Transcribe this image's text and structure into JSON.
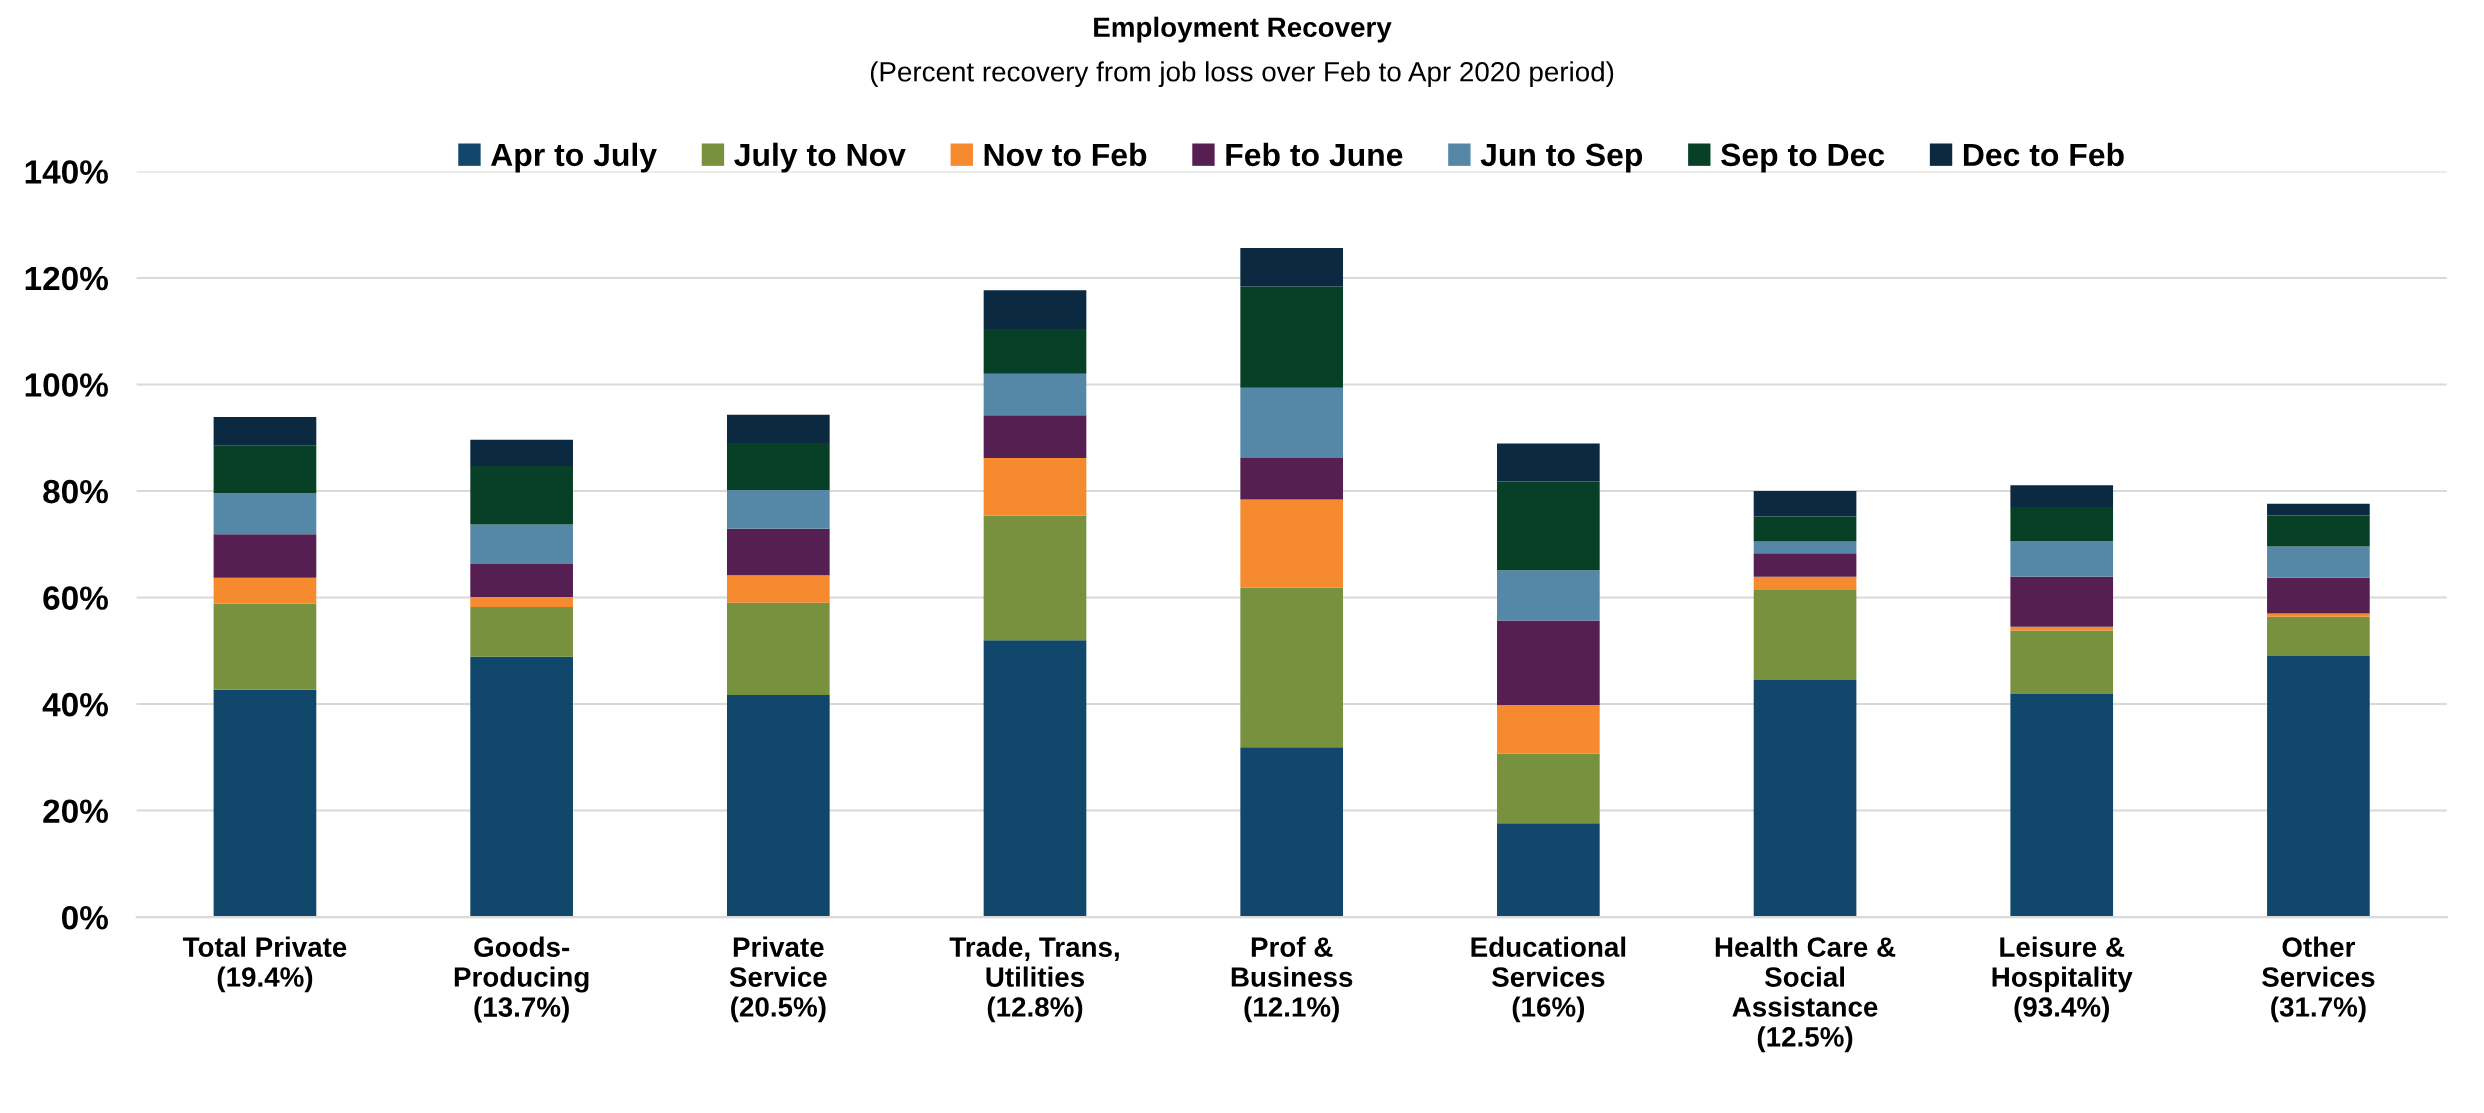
{
  "chart_data": {
    "type": "bar",
    "stacked": true,
    "title": "Employment Recovery",
    "subtitle": "(Percent recovery from job loss over Feb to Apr 2020 period)",
    "categories": [
      "Total Private\n(19.4%)",
      "Goods-\nProducing\n(13.7%)",
      "Private\nService\n(20.5%)",
      "Trade, Trans,\nUtilities\n(12.8%)",
      "Prof &\nBusiness\n(12.1%)",
      "Educational\nServices\n(16%)",
      "Health Care &\nSocial\nAssistance\n(12.5%)",
      "Leisure &\nHospitality\n(93.4%)",
      "Other\nServices\n(31.7%)"
    ],
    "series": [
      {
        "name": "Apr to July",
        "color": "#11476a",
        "values": [
          42.7,
          48.9,
          41.7,
          52.0,
          31.9,
          17.6,
          44.5,
          41.9,
          49.0
        ]
      },
      {
        "name": "July to Nov",
        "color": "#77913f",
        "values": [
          16.2,
          9.3,
          17.3,
          23.4,
          30.0,
          13.1,
          16.9,
          11.9,
          7.4
        ]
      },
      {
        "name": "Nov to Feb",
        "color": "#f58a2f",
        "values": [
          4.8,
          1.9,
          5.2,
          10.8,
          16.5,
          9.1,
          2.5,
          0.7,
          0.6
        ]
      },
      {
        "name": "Feb to June",
        "color": "#561f51",
        "values": [
          8.2,
          6.2,
          8.7,
          8.0,
          7.8,
          15.9,
          4.4,
          9.4,
          6.7
        ]
      },
      {
        "name": "Jun to Sep",
        "color": "#5488a6",
        "values": [
          7.7,
          7.4,
          7.3,
          7.8,
          13.2,
          9.4,
          2.2,
          6.7,
          5.9
        ]
      },
      {
        "name": "Sep to Dec",
        "color": "#084027",
        "values": [
          9.0,
          11.0,
          8.8,
          8.4,
          19.0,
          16.7,
          4.7,
          6.4,
          5.8
        ]
      },
      {
        "name": "Dec to Feb",
        "color": "#0b2940",
        "values": [
          5.3,
          4.9,
          5.3,
          7.3,
          7.2,
          7.1,
          4.8,
          4.1,
          2.2
        ]
      }
    ],
    "ylim": [
      0,
      140
    ],
    "yticks": [
      {
        "value": 0,
        "label": "0%"
      },
      {
        "value": 20,
        "label": "20%"
      },
      {
        "value": 40,
        "label": "40%"
      },
      {
        "value": 60,
        "label": "60%"
      },
      {
        "value": 80,
        "label": "80%"
      },
      {
        "value": 100,
        "label": "100%"
      },
      {
        "value": 120,
        "label": "120%"
      },
      {
        "value": 140,
        "label": "140%"
      }
    ],
    "grid": "y",
    "legend": "top"
  }
}
